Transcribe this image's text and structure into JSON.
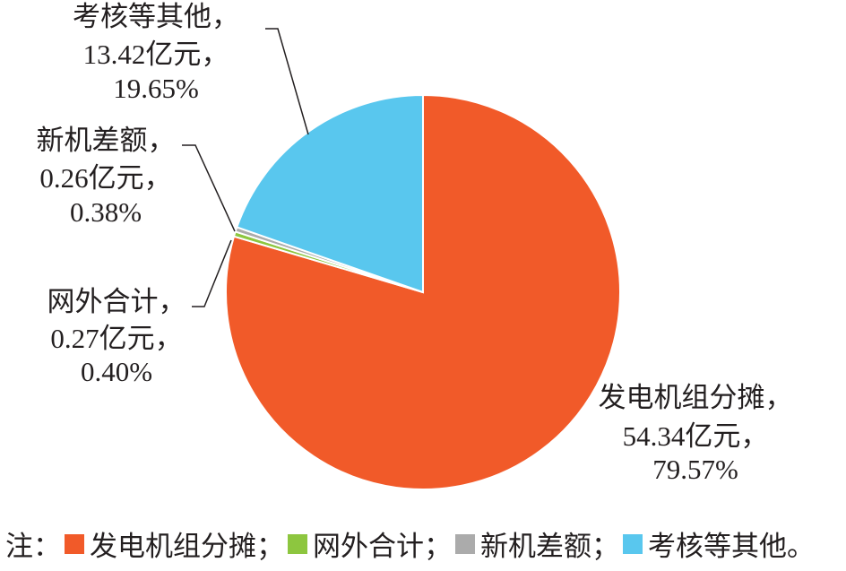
{
  "chart_data": {
    "type": "pie",
    "categories": [
      "发电机组分摊",
      "网外合计",
      "新机差额",
      "考核等其他"
    ],
    "values": [
      79.57,
      0.4,
      0.38,
      19.65
    ],
    "value_labels": [
      "79.57%",
      "0.40%",
      "0.38%",
      "19.65%"
    ],
    "slice_labels": [
      [
        "发电机组分摊，",
        "54.34亿元，"
      ],
      [
        "网外合计，",
        "0.27亿元，"
      ],
      [
        "新机差额，",
        "0.26亿元，"
      ],
      [
        "考核等其他，",
        "13.42亿元，"
      ]
    ],
    "colors": [
      "#f15a29",
      "#8dc63f",
      "#ababab",
      "#59c7ee"
    ],
    "legend": {
      "prefix": "注：",
      "separators": [
        "；",
        "；",
        "；",
        "。"
      ]
    }
  }
}
